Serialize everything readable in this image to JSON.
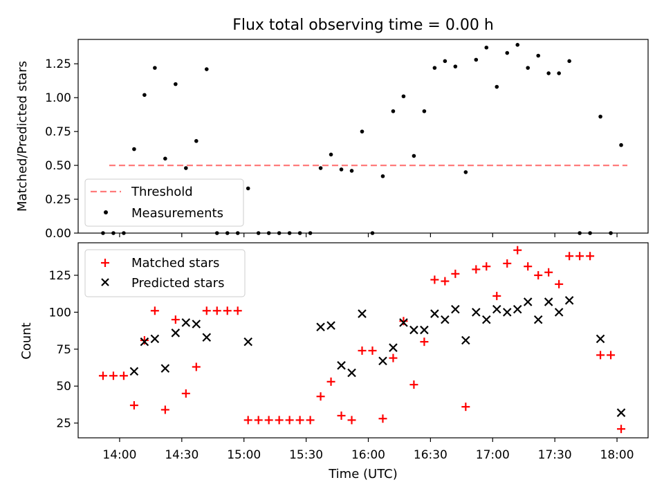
{
  "chart_data": [
    {
      "type": "scatter",
      "title": "Flux total observing time = 0.00 h",
      "xlabel": "",
      "ylabel": "Matched/Predicted stars",
      "xlim": [
        "13:40",
        "18:15"
      ],
      "ylim": [
        0,
        1.43
      ],
      "grid": false,
      "legend_position": "lower-left",
      "yticks": [
        "0.00",
        "0.25",
        "0.50",
        "0.75",
        "1.00",
        "1.25"
      ],
      "threshold": {
        "name": "Threshold",
        "value": 0.5,
        "x_range": [
          "13:55",
          "18:05"
        ],
        "color": "#ff7a7a"
      },
      "series": [
        {
          "name": "Measurements",
          "color": "#000000",
          "x": [
            "13:52",
            "13:57",
            "14:02",
            "14:07",
            "14:12",
            "14:17",
            "14:22",
            "14:27",
            "14:32",
            "14:37",
            "14:42",
            "14:47",
            "14:52",
            "14:57",
            "15:02",
            "15:07",
            "15:12",
            "15:17",
            "15:22",
            "15:27",
            "15:32",
            "15:37",
            "15:42",
            "15:47",
            "15:52",
            "15:57",
            "16:02",
            "16:07",
            "16:12",
            "16:17",
            "16:22",
            "16:27",
            "16:32",
            "16:37",
            "16:42",
            "16:47",
            "16:52",
            "16:57",
            "17:02",
            "17:07",
            "17:12",
            "17:17",
            "17:22",
            "17:27",
            "17:32",
            "17:37",
            "17:42",
            "17:47",
            "17:52",
            "17:57",
            "18:02"
          ],
          "y": [
            0,
            0,
            0,
            0.62,
            1.02,
            1.22,
            0.55,
            1.1,
            0.48,
            0.68,
            1.21,
            0,
            0,
            0,
            0.33,
            0,
            0,
            0,
            0,
            0,
            0,
            0.48,
            0.58,
            0.47,
            0.46,
            0.75,
            0,
            0.42,
            0.9,
            1.01,
            0.57,
            0.9,
            1.22,
            1.27,
            1.23,
            0.45,
            1.28,
            1.37,
            1.08,
            1.33,
            1.39,
            1.22,
            1.31,
            1.18,
            1.18,
            1.27,
            0,
            0,
            0.86,
            0,
            0.65
          ]
        }
      ]
    },
    {
      "type": "scatter",
      "title": "",
      "xlabel": "Time (UTC)",
      "ylabel": "Count",
      "xlim": [
        "13:40",
        "18:15"
      ],
      "ylim": [
        15,
        147
      ],
      "grid": false,
      "legend_position": "upper-left",
      "yticks": [
        "25",
        "50",
        "75",
        "100",
        "125"
      ],
      "xticks": [
        "14:00",
        "14:30",
        "15:00",
        "15:30",
        "16:00",
        "16:30",
        "17:00",
        "17:30",
        "18:00"
      ],
      "series": [
        {
          "name": "Matched stars",
          "marker": "plus",
          "color": "#ff0000",
          "x": [
            "13:52",
            "13:57",
            "14:02",
            "14:07",
            "14:12",
            "14:17",
            "14:22",
            "14:27",
            "14:32",
            "14:37",
            "14:42",
            "14:47",
            "14:52",
            "14:57",
            "15:02",
            "15:07",
            "15:12",
            "15:17",
            "15:22",
            "15:27",
            "15:32",
            "15:37",
            "15:42",
            "15:47",
            "15:52",
            "15:57",
            "16:02",
            "16:07",
            "16:12",
            "16:17",
            "16:22",
            "16:27",
            "16:32",
            "16:37",
            "16:42",
            "16:47",
            "16:52",
            "16:57",
            "17:02",
            "17:07",
            "17:12",
            "17:17",
            "17:22",
            "17:27",
            "17:32",
            "17:37",
            "17:42",
            "17:47",
            "17:52",
            "17:57",
            "18:02"
          ],
          "y": [
            57,
            57,
            57,
            37,
            81,
            101,
            34,
            95,
            45,
            63,
            101,
            101,
            101,
            101,
            27,
            27,
            27,
            27,
            27,
            27,
            27,
            43,
            53,
            30,
            27,
            74,
            74,
            28,
            69,
            94,
            51,
            80,
            122,
            121,
            126,
            36,
            129,
            131,
            111,
            133,
            142,
            131,
            125,
            127,
            119,
            138,
            138,
            138,
            71,
            71,
            21
          ]
        },
        {
          "name": "Predicted stars",
          "marker": "x",
          "color": "#000000",
          "x": [
            "14:07",
            "14:12",
            "14:17",
            "14:22",
            "14:27",
            "14:32",
            "14:37",
            "14:42",
            "15:02",
            "15:37",
            "15:42",
            "15:47",
            "15:52",
            "15:57",
            "16:07",
            "16:12",
            "16:17",
            "16:22",
            "16:27",
            "16:32",
            "16:37",
            "16:42",
            "16:47",
            "16:52",
            "16:57",
            "17:02",
            "17:07",
            "17:12",
            "17:17",
            "17:22",
            "17:27",
            "17:32",
            "17:37",
            "17:52",
            "18:02"
          ],
          "y": [
            60,
            80,
            82,
            62,
            86,
            93,
            92,
            83,
            80,
            90,
            91,
            64,
            59,
            99,
            67,
            76,
            93,
            88,
            88,
            99,
            95,
            102,
            81,
            100,
            95,
            102,
            100,
            102,
            107,
            95,
            107,
            100,
            108,
            82,
            32
          ]
        }
      ]
    }
  ]
}
